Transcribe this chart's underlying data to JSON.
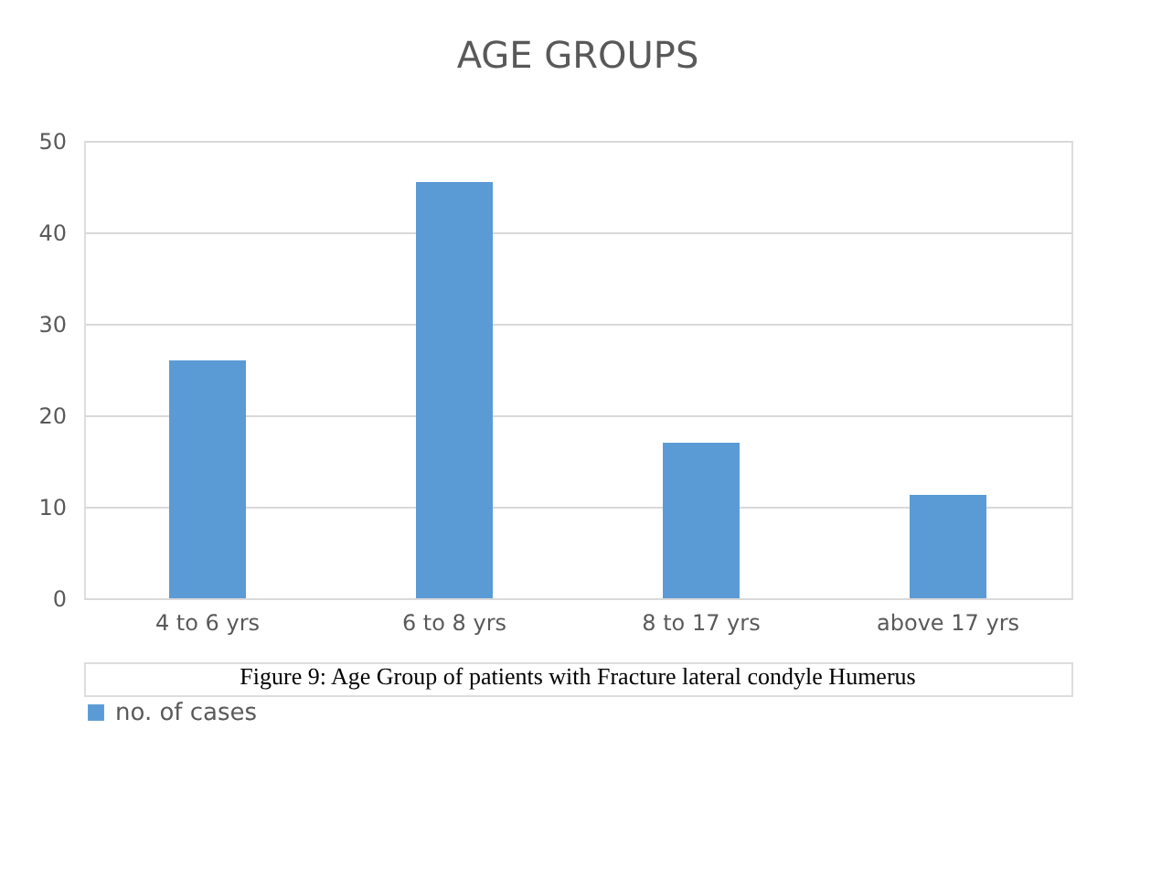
{
  "chart_data": {
    "type": "bar",
    "title": "AGE GROUPS",
    "categories": [
      "4 to 6 yrs",
      "6 to 8 yrs",
      "8 to 17 yrs",
      "above 17 yrs"
    ],
    "series": [
      {
        "name": "no. of cases",
        "color": "#5b9bd5",
        "values": [
          26,
          45.5,
          17,
          11.3
        ]
      }
    ],
    "ylim": [
      0,
      50
    ],
    "yticks": [
      0,
      10,
      20,
      30,
      40,
      50
    ],
    "grid": "y",
    "legend": "bottom",
    "annotations": [
      "Figure 9: Age Group of patients with Fracture lateral condyle Humerus"
    ]
  }
}
